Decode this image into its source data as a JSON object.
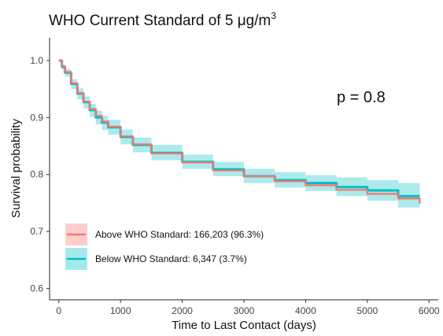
{
  "chart_data": {
    "type": "line",
    "title": "WHO Current Standard of 5 μg/m",
    "title_superscript": "3",
    "xlabel": "Time to Last Contact (days)",
    "ylabel": "Survival probability",
    "xlim": [
      -150,
      6150
    ],
    "ylim": [
      0.58,
      1.04
    ],
    "x_ticks": [
      0,
      1000,
      2000,
      3000,
      4000,
      5000,
      6000
    ],
    "y_ticks": [
      0.6,
      0.7,
      0.8,
      0.9,
      1.0
    ],
    "y_tick_labels": [
      "0.6",
      "0.7",
      "0.8",
      "0.9",
      "1.0"
    ],
    "annotation": "p = 0.8",
    "grid": false,
    "legend_position": "bottom-left",
    "series": [
      {
        "name": "Above WHO Standard: 166,203 (96.3%)",
        "color": "#F8766D",
        "x": [
          0,
          50,
          100,
          200,
          300,
          400,
          500,
          600,
          700,
          800,
          1000,
          1200,
          1500,
          2000,
          2500,
          3000,
          3500,
          4000,
          4500,
          5000,
          5500,
          5850
        ],
        "y": [
          1.0,
          0.99,
          0.98,
          0.96,
          0.943,
          0.928,
          0.915,
          0.903,
          0.893,
          0.884,
          0.867,
          0.853,
          0.837,
          0.821,
          0.807,
          0.797,
          0.788,
          0.781,
          0.773,
          0.766,
          0.758,
          0.749
        ],
        "ci_lower": [
          1.0,
          0.989,
          0.979,
          0.959,
          0.942,
          0.927,
          0.914,
          0.902,
          0.892,
          0.883,
          0.866,
          0.852,
          0.836,
          0.82,
          0.806,
          0.796,
          0.787,
          0.78,
          0.772,
          0.764,
          0.755,
          0.745
        ],
        "ci_upper": [
          1.0,
          0.991,
          0.981,
          0.961,
          0.944,
          0.929,
          0.916,
          0.904,
          0.894,
          0.885,
          0.868,
          0.854,
          0.838,
          0.822,
          0.808,
          0.798,
          0.789,
          0.782,
          0.774,
          0.768,
          0.761,
          0.753
        ]
      },
      {
        "name": "Below WHO Standard: 6,347 (3.7%)",
        "color": "#00BFC4",
        "x": [
          0,
          50,
          100,
          200,
          300,
          400,
          500,
          600,
          700,
          800,
          1000,
          1200,
          1500,
          2000,
          2500,
          3000,
          3500,
          4000,
          4500,
          5000,
          5500,
          5850
        ],
        "y": [
          1.0,
          0.989,
          0.979,
          0.959,
          0.942,
          0.927,
          0.913,
          0.9,
          0.891,
          0.883,
          0.866,
          0.852,
          0.838,
          0.822,
          0.809,
          0.797,
          0.79,
          0.785,
          0.778,
          0.772,
          0.762,
          0.762
        ],
        "ci_lower": [
          0.999,
          0.984,
          0.972,
          0.95,
          0.932,
          0.916,
          0.901,
          0.888,
          0.878,
          0.87,
          0.853,
          0.839,
          0.825,
          0.81,
          0.797,
          0.785,
          0.777,
          0.771,
          0.762,
          0.754,
          0.742,
          0.742
        ],
        "ci_upper": [
          1.0,
          0.993,
          0.985,
          0.967,
          0.951,
          0.937,
          0.924,
          0.912,
          0.903,
          0.896,
          0.879,
          0.865,
          0.852,
          0.835,
          0.822,
          0.81,
          0.804,
          0.799,
          0.795,
          0.79,
          0.785,
          0.785
        ]
      }
    ]
  }
}
